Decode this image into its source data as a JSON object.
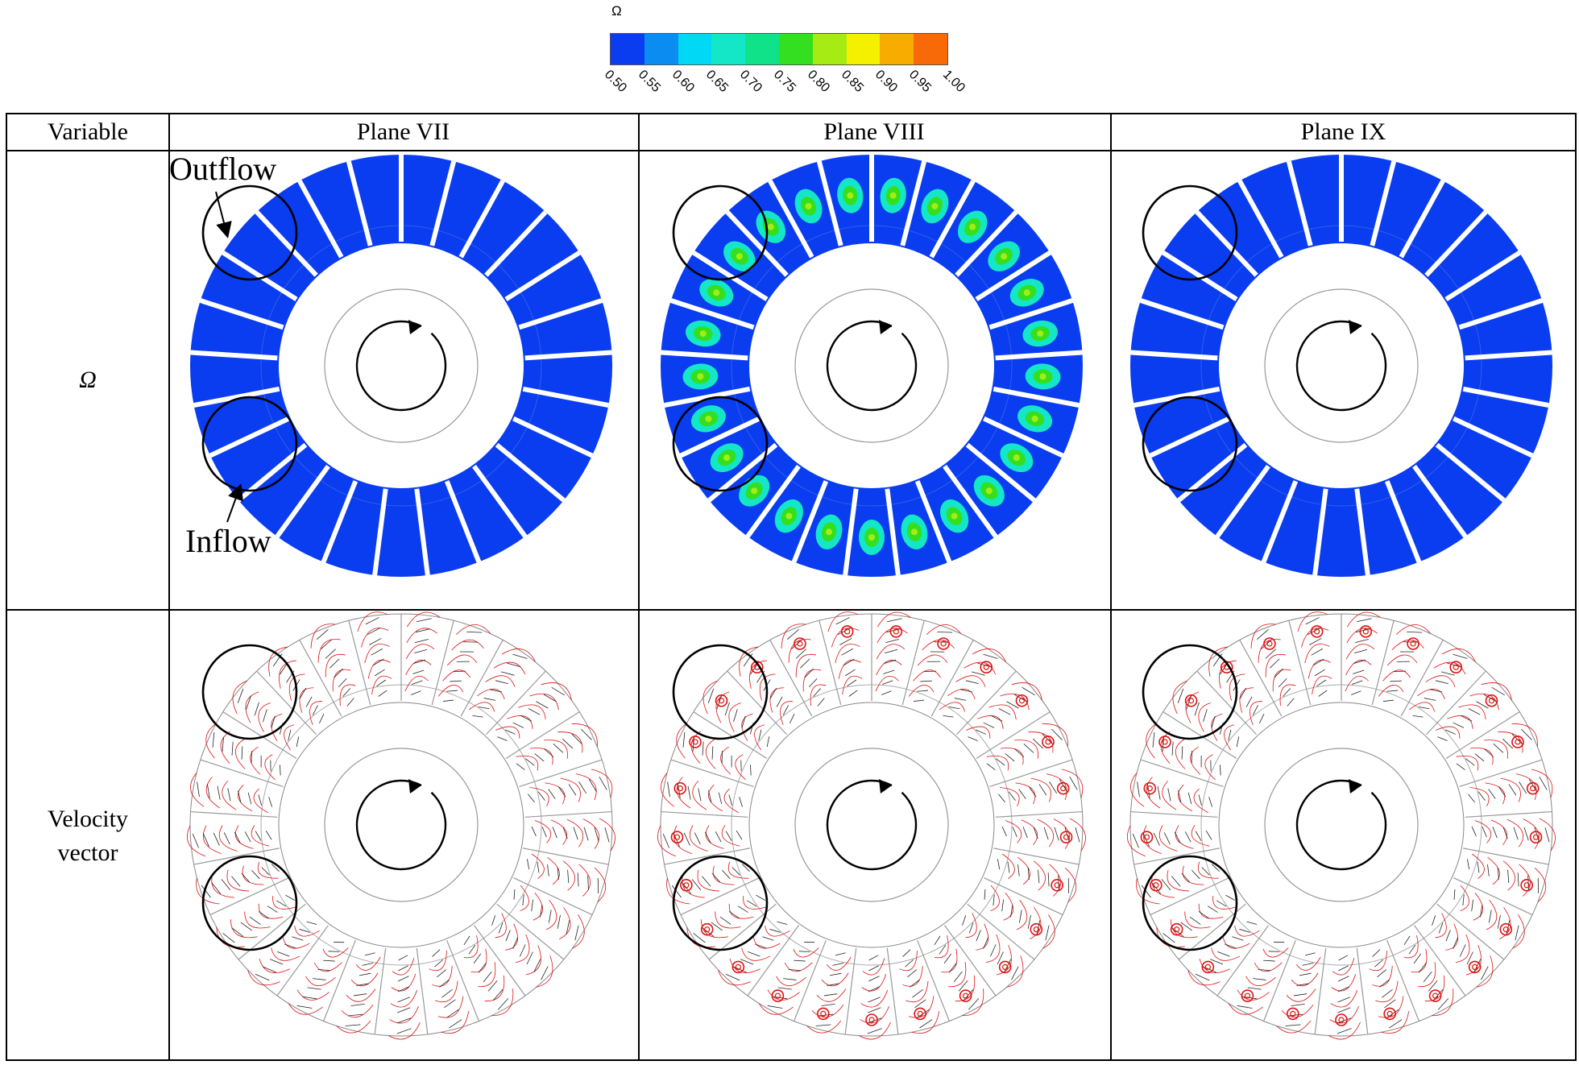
{
  "colorbar": {
    "title": "Ω",
    "ticks": [
      "0.50",
      "0.55",
      "0.60",
      "0.65",
      "0.70",
      "0.75",
      "0.80",
      "0.85",
      "0.90",
      "0.95",
      "1.00"
    ],
    "colors": [
      "#0a3cf0",
      "#0a8cf0",
      "#00d8f5",
      "#14e6c8",
      "#10e28a",
      "#34df20",
      "#a6ec14",
      "#f5f000",
      "#f8ac00",
      "#f86a08"
    ]
  },
  "table": {
    "headers": {
      "variable": "Variable",
      "plane_vii": "Plane VII",
      "plane_viii": "Plane VIII",
      "plane_ix": "Plane IX"
    },
    "row1_label": "Ω",
    "row2_label_line1": "Velocity",
    "row2_label_line2": "vector"
  },
  "annotations": {
    "outflow": "Outflow",
    "inflow": "Inflow"
  },
  "style": {
    "contour_blue": "#0a3cf0",
    "streamline_red": "#e01010",
    "vector_black": "#222222"
  }
}
